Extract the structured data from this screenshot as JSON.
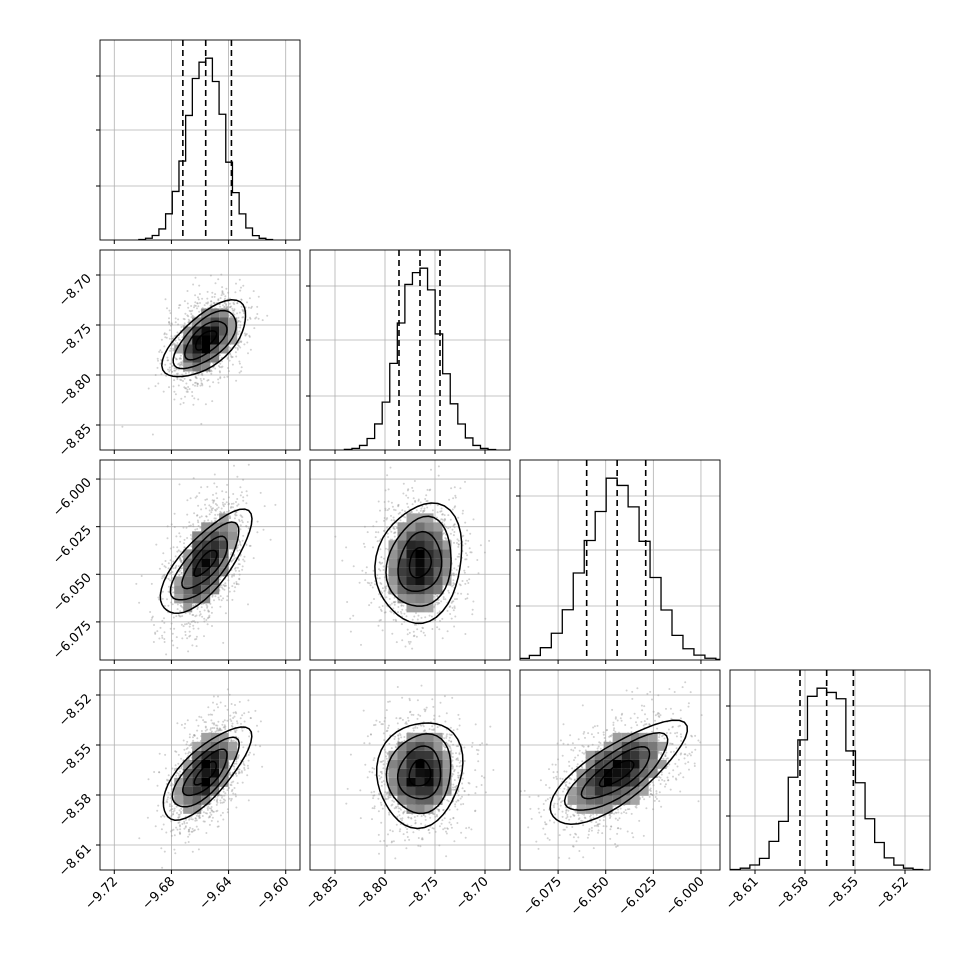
{
  "chart_data": {
    "type": "corner",
    "grid": true,
    "parameters": [
      {
        "index": 0,
        "range": [
          -9.73,
          -9.59
        ],
        "ticks": [
          -9.72,
          -9.68,
          -9.64,
          -9.6
        ],
        "tick_labels": [
          "−9.72",
          "−9.68",
          "−9.64",
          "−9.60"
        ],
        "quantiles": [
          -9.672,
          -9.656,
          -9.638
        ],
        "median": -9.656,
        "sigma": 0.013
      },
      {
        "index": 1,
        "range": [
          -8.875,
          -8.675
        ],
        "ticks": [
          -8.85,
          -8.8,
          -8.75,
          -8.7
        ],
        "tick_labels": [
          "−8.85",
          "−8.80",
          "−8.75",
          "−8.70"
        ],
        "quantiles": [
          -8.786,
          -8.765,
          -8.745
        ],
        "median": -8.765,
        "sigma": 0.021
      },
      {
        "index": 2,
        "range": [
          -6.095,
          -5.99
        ],
        "ticks": [
          -6.075,
          -6.05,
          -6.025,
          -6.0
        ],
        "tick_labels": [
          "−6.075",
          "−6.050",
          "−6.025",
          "−6.000"
        ],
        "quantiles": [
          -6.06,
          -6.044,
          -6.029
        ],
        "median": -6.044,
        "sigma": 0.016
      },
      {
        "index": 3,
        "range": [
          -8.625,
          -8.505
        ],
        "ticks": [
          -8.61,
          -8.58,
          -8.55,
          -8.52
        ],
        "tick_labels": [
          "−8.61",
          "−8.58",
          "−8.55",
          "−8.52"
        ],
        "quantiles": [
          -8.583,
          -8.567,
          -8.551
        ],
        "median": -8.567,
        "sigma": 0.016
      }
    ],
    "correlations": [
      {
        "pair": [
          1,
          0
        ],
        "rho": 0.4
      },
      {
        "pair": [
          2,
          0
        ],
        "rho": 0.5
      },
      {
        "pair": [
          2,
          1
        ],
        "rho": 0.08
      },
      {
        "pair": [
          3,
          0
        ],
        "rho": 0.5
      },
      {
        "pair": [
          3,
          1
        ],
        "rho": 0.05
      },
      {
        "pair": [
          3,
          2
        ],
        "rho": 0.5
      }
    ],
    "contour_levels_sigma": [
      0.5,
      1.0,
      1.5,
      2.0
    ]
  }
}
